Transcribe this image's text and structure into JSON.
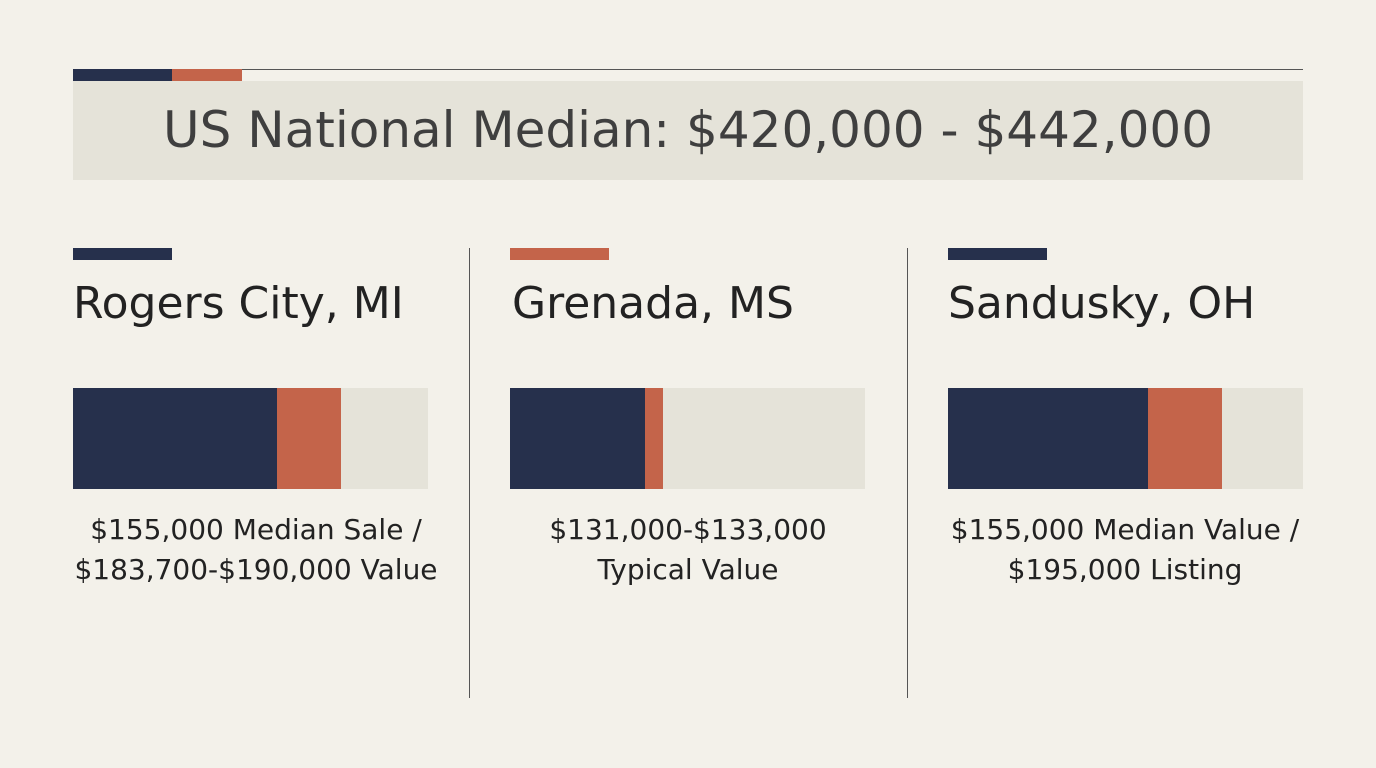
{
  "header": {
    "title": "US National Median: $420,000 - $442,000"
  },
  "cards": [
    {
      "title": "Rogers City, MI",
      "lines": [
        "$155,000 Median Sale /",
        "$183,700-$190,000 Value"
      ]
    },
    {
      "title": "Grenada, MS",
      "lines": [
        "$131,000-$133,000",
        "Typical Value"
      ]
    },
    {
      "title": "Sandusky, OH",
      "lines": [
        "$155,000 Median Value /",
        "$195,000 Listing"
      ]
    }
  ]
}
